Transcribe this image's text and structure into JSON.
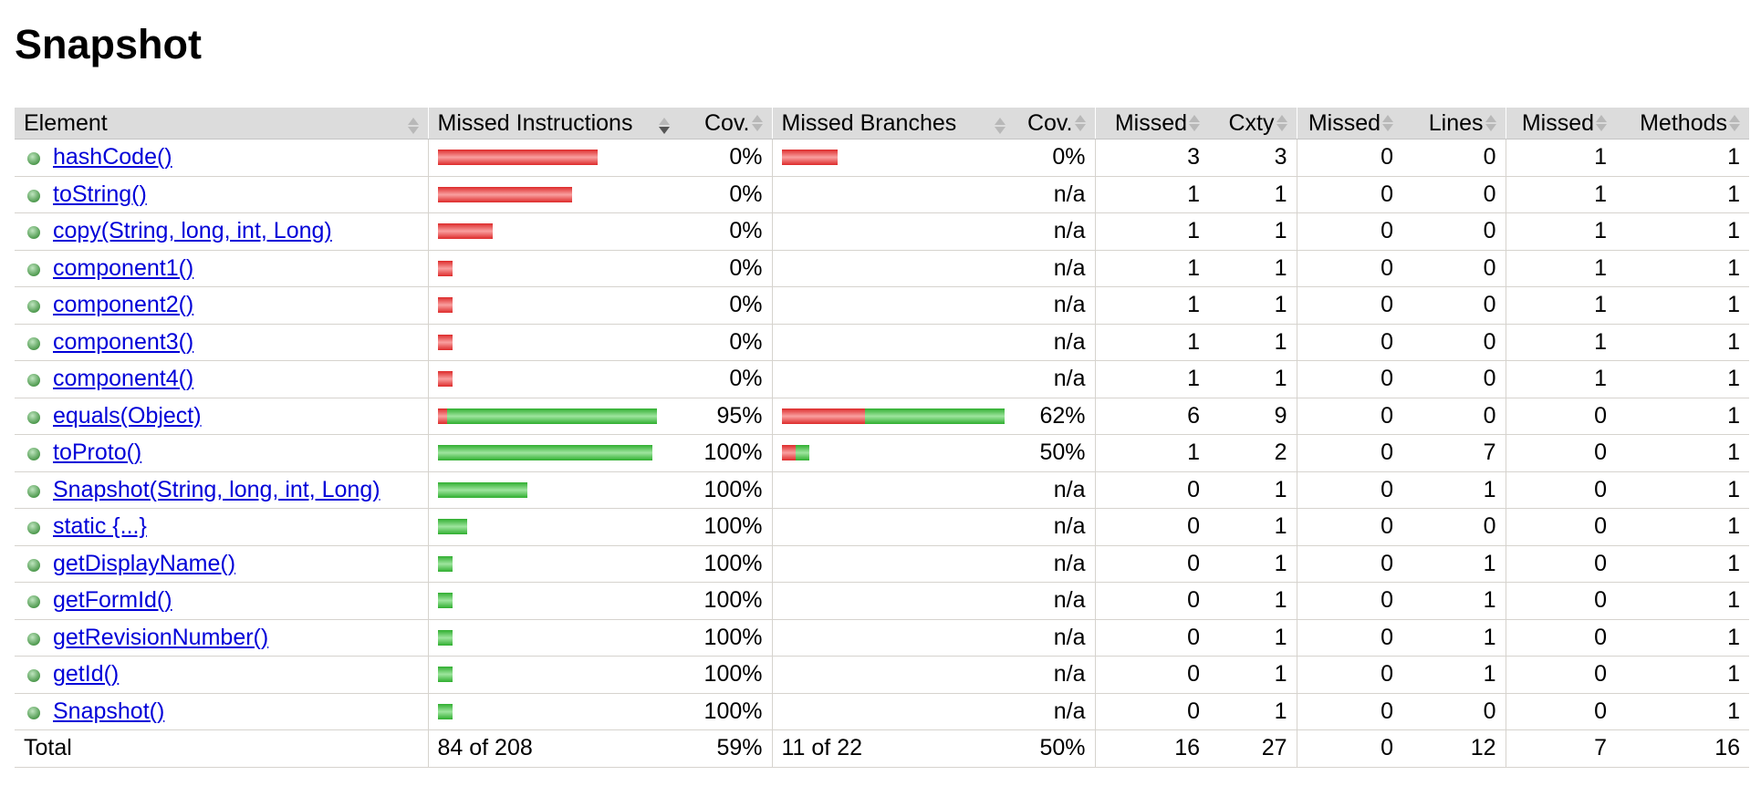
{
  "title": "Snapshot",
  "table": {
    "headers": [
      "Element",
      "Missed Instructions",
      "Cov.",
      "Missed Branches",
      "Cov.",
      "Missed",
      "Cxty",
      "Missed",
      "Lines",
      "Missed",
      "Methods"
    ],
    "rows": [
      {
        "element": "hashCode()",
        "missed_instructions": 32,
        "instructions_cov": "0%",
        "missed_branches": 4,
        "branches_cov": "0%",
        "missed_cxty": 3,
        "cxty": 3,
        "missed_lines": 0,
        "lines": 0,
        "missed_methods": 1,
        "methods": 1
      },
      {
        "element": "toString()",
        "missed_instructions": 27,
        "instructions_cov": "0%",
        "branches_cov": "n/a",
        "missed_cxty": 1,
        "cxty": 1,
        "missed_lines": 0,
        "lines": 0,
        "missed_methods": 1,
        "methods": 1
      },
      {
        "element": "copy(String, long, int, Long)",
        "missed_instructions": 11,
        "instructions_cov": "0%",
        "branches_cov": "n/a",
        "missed_cxty": 1,
        "cxty": 1,
        "missed_lines": 0,
        "lines": 0,
        "missed_methods": 1,
        "methods": 1
      },
      {
        "element": "component1()",
        "missed_instructions": 3,
        "instructions_cov": "0%",
        "branches_cov": "n/a",
        "missed_cxty": 1,
        "cxty": 1,
        "missed_lines": 0,
        "lines": 0,
        "missed_methods": 1,
        "methods": 1
      },
      {
        "element": "component2()",
        "missed_instructions": 3,
        "instructions_cov": "0%",
        "branches_cov": "n/a",
        "missed_cxty": 1,
        "cxty": 1,
        "missed_lines": 0,
        "lines": 0,
        "missed_methods": 1,
        "methods": 1
      },
      {
        "element": "component3()",
        "missed_instructions": 3,
        "instructions_cov": "0%",
        "branches_cov": "n/a",
        "missed_cxty": 1,
        "cxty": 1,
        "missed_lines": 0,
        "lines": 0,
        "missed_methods": 1,
        "methods": 1
      },
      {
        "element": "component4()",
        "missed_instructions": 3,
        "instructions_cov": "0%",
        "branches_cov": "n/a",
        "missed_cxty": 1,
        "cxty": 1,
        "missed_lines": 0,
        "lines": 0,
        "missed_methods": 1,
        "methods": 1
      },
      {
        "element": "equals(Object)",
        "missed_instructions": 2,
        "covered_instructions": 42,
        "instructions_cov": "95%",
        "missed_branches": 6,
        "covered_branches": 10,
        "branches_cov": "62%",
        "missed_cxty": 6,
        "cxty": 9,
        "missed_lines": 0,
        "lines": 0,
        "missed_methods": 0,
        "methods": 1
      },
      {
        "element": "toProto()",
        "covered_instructions": 43,
        "instructions_cov": "100%",
        "missed_branches": 1,
        "covered_branches": 1,
        "branches_cov": "50%",
        "missed_cxty": 1,
        "cxty": 2,
        "missed_lines": 0,
        "lines": 7,
        "missed_methods": 0,
        "methods": 1
      },
      {
        "element": "Snapshot(String, long, int, Long)",
        "covered_instructions": 18,
        "instructions_cov": "100%",
        "branches_cov": "n/a",
        "missed_cxty": 0,
        "cxty": 1,
        "missed_lines": 0,
        "lines": 1,
        "missed_methods": 0,
        "methods": 1
      },
      {
        "element": "static {...}",
        "covered_instructions": 6,
        "instructions_cov": "100%",
        "branches_cov": "n/a",
        "missed_cxty": 0,
        "cxty": 1,
        "missed_lines": 0,
        "lines": 0,
        "missed_methods": 0,
        "methods": 1
      },
      {
        "element": "getDisplayName()",
        "covered_instructions": 3,
        "instructions_cov": "100%",
        "branches_cov": "n/a",
        "missed_cxty": 0,
        "cxty": 1,
        "missed_lines": 0,
        "lines": 1,
        "missed_methods": 0,
        "methods": 1
      },
      {
        "element": "getFormId()",
        "covered_instructions": 3,
        "instructions_cov": "100%",
        "branches_cov": "n/a",
        "missed_cxty": 0,
        "cxty": 1,
        "missed_lines": 0,
        "lines": 1,
        "missed_methods": 0,
        "methods": 1
      },
      {
        "element": "getRevisionNumber()",
        "covered_instructions": 3,
        "instructions_cov": "100%",
        "branches_cov": "n/a",
        "missed_cxty": 0,
        "cxty": 1,
        "missed_lines": 0,
        "lines": 1,
        "missed_methods": 0,
        "methods": 1
      },
      {
        "element": "getId()",
        "covered_instructions": 3,
        "instructions_cov": "100%",
        "branches_cov": "n/a",
        "missed_cxty": 0,
        "cxty": 1,
        "missed_lines": 0,
        "lines": 1,
        "missed_methods": 0,
        "methods": 1
      },
      {
        "element": "Snapshot()",
        "covered_instructions": 3,
        "instructions_cov": "100%",
        "branches_cov": "n/a",
        "missed_cxty": 0,
        "cxty": 1,
        "missed_lines": 0,
        "lines": 0,
        "missed_methods": 0,
        "methods": 1
      }
    ],
    "total": {
      "label": "Total",
      "instructions": "84 of 208",
      "instructions_cov": "59%",
      "branches": "11 of 22",
      "branches_cov": "50%",
      "missed_cxty": 16,
      "cxty": 27,
      "missed_lines": 0,
      "lines": 12,
      "missed_methods": 7,
      "methods": 16
    }
  }
}
